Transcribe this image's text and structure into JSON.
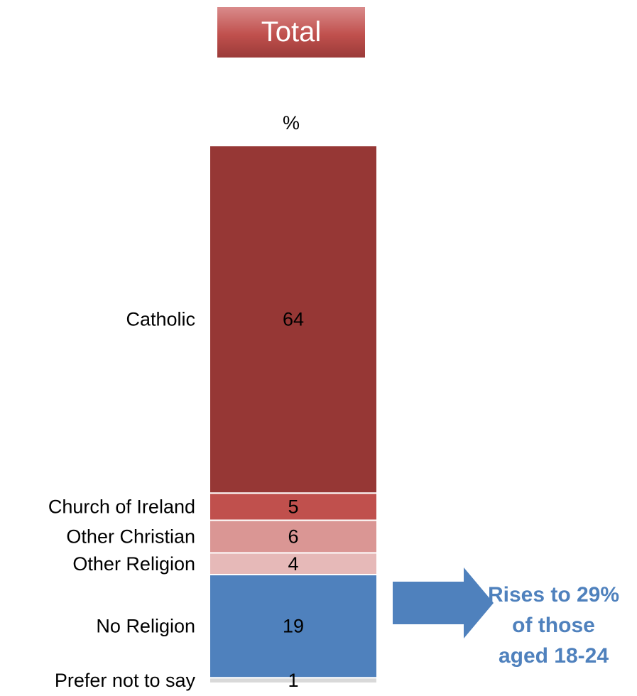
{
  "header": {
    "title": "Total"
  },
  "chart_data": {
    "type": "bar",
    "stacked": true,
    "orientation": "vertical",
    "unit": "%",
    "categories": [
      "Catholic",
      "Church of Ireland",
      "Other Christian",
      "Other Religion",
      "No Religion",
      "Prefer not to say"
    ],
    "values": [
      64,
      5,
      6,
      4,
      19,
      1
    ],
    "colors": [
      "#963735",
      "#c0504d",
      "#da9694",
      "#e6b9b8",
      "#4f81bd",
      "#d9d9d9"
    ]
  },
  "callout": {
    "lines": [
      "Rises to 29%",
      "of those",
      "aged 18-24"
    ],
    "color": "#4f81bd",
    "arrow": "right-arrow"
  }
}
